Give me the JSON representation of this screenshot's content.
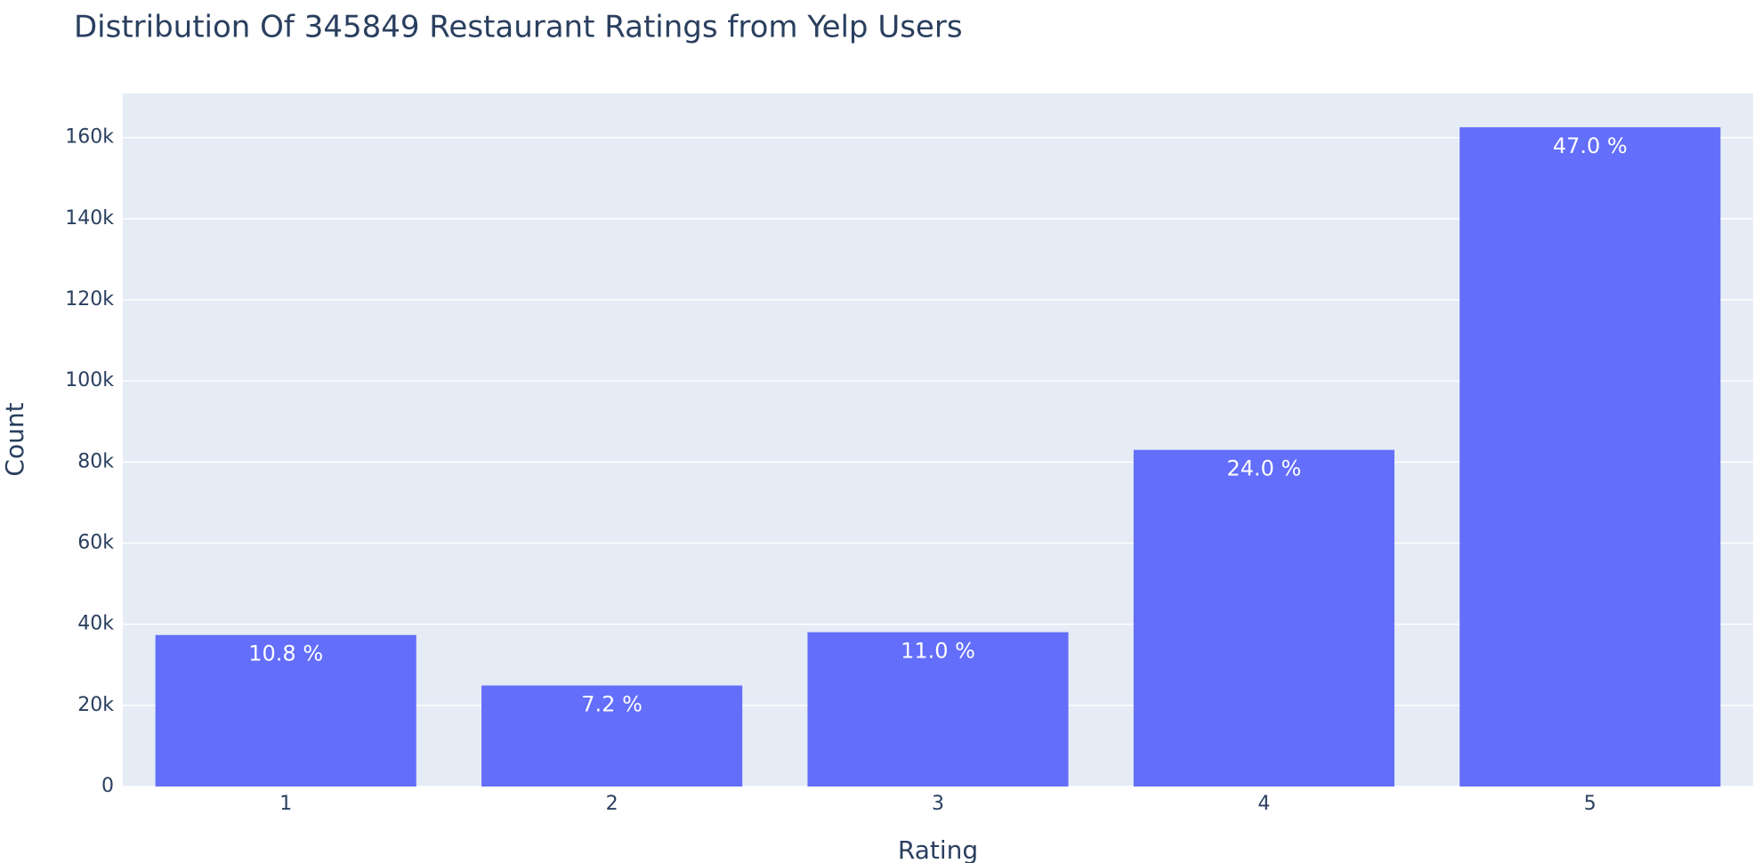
{
  "chart_data": {
    "type": "bar",
    "title": "Distribution Of 345849 Restaurant Ratings from Yelp Users",
    "x_label": "Rating",
    "y_label": "Count",
    "categories": [
      "1",
      "2",
      "3",
      "4",
      "5"
    ],
    "values": [
      37352,
      24901,
      38043,
      83004,
      162549
    ],
    "percent_labels": [
      {
        "value": 10.8,
        "label": "10.8 %"
      },
      {
        "value": 7.2,
        "label": "7.2 %"
      },
      {
        "value": 11.0,
        "label": "11.0 %"
      },
      {
        "value": 24.0,
        "label": "24.0 %"
      },
      {
        "value": 47.0,
        "label": "47.0 %"
      }
    ],
    "color": "#636efa",
    "background": "#e5ecf6",
    "ylim": [
      0,
      170900
    ],
    "yticks": [
      0,
      {
        "value": 20000,
        "label": "20k"
      },
      {
        "value": 40000,
        "label": "40k"
      },
      {
        "value": 60000,
        "label": "60k"
      },
      {
        "value": 80000,
        "label": "80k"
      },
      {
        "value": 100000,
        "label": "100k"
      },
      {
        "value": 120000,
        "label": "120k"
      },
      {
        "value": 140000,
        "label": "140k"
      },
      {
        "value": 160000,
        "label": "160k"
      }
    ],
    "grid": true
  }
}
